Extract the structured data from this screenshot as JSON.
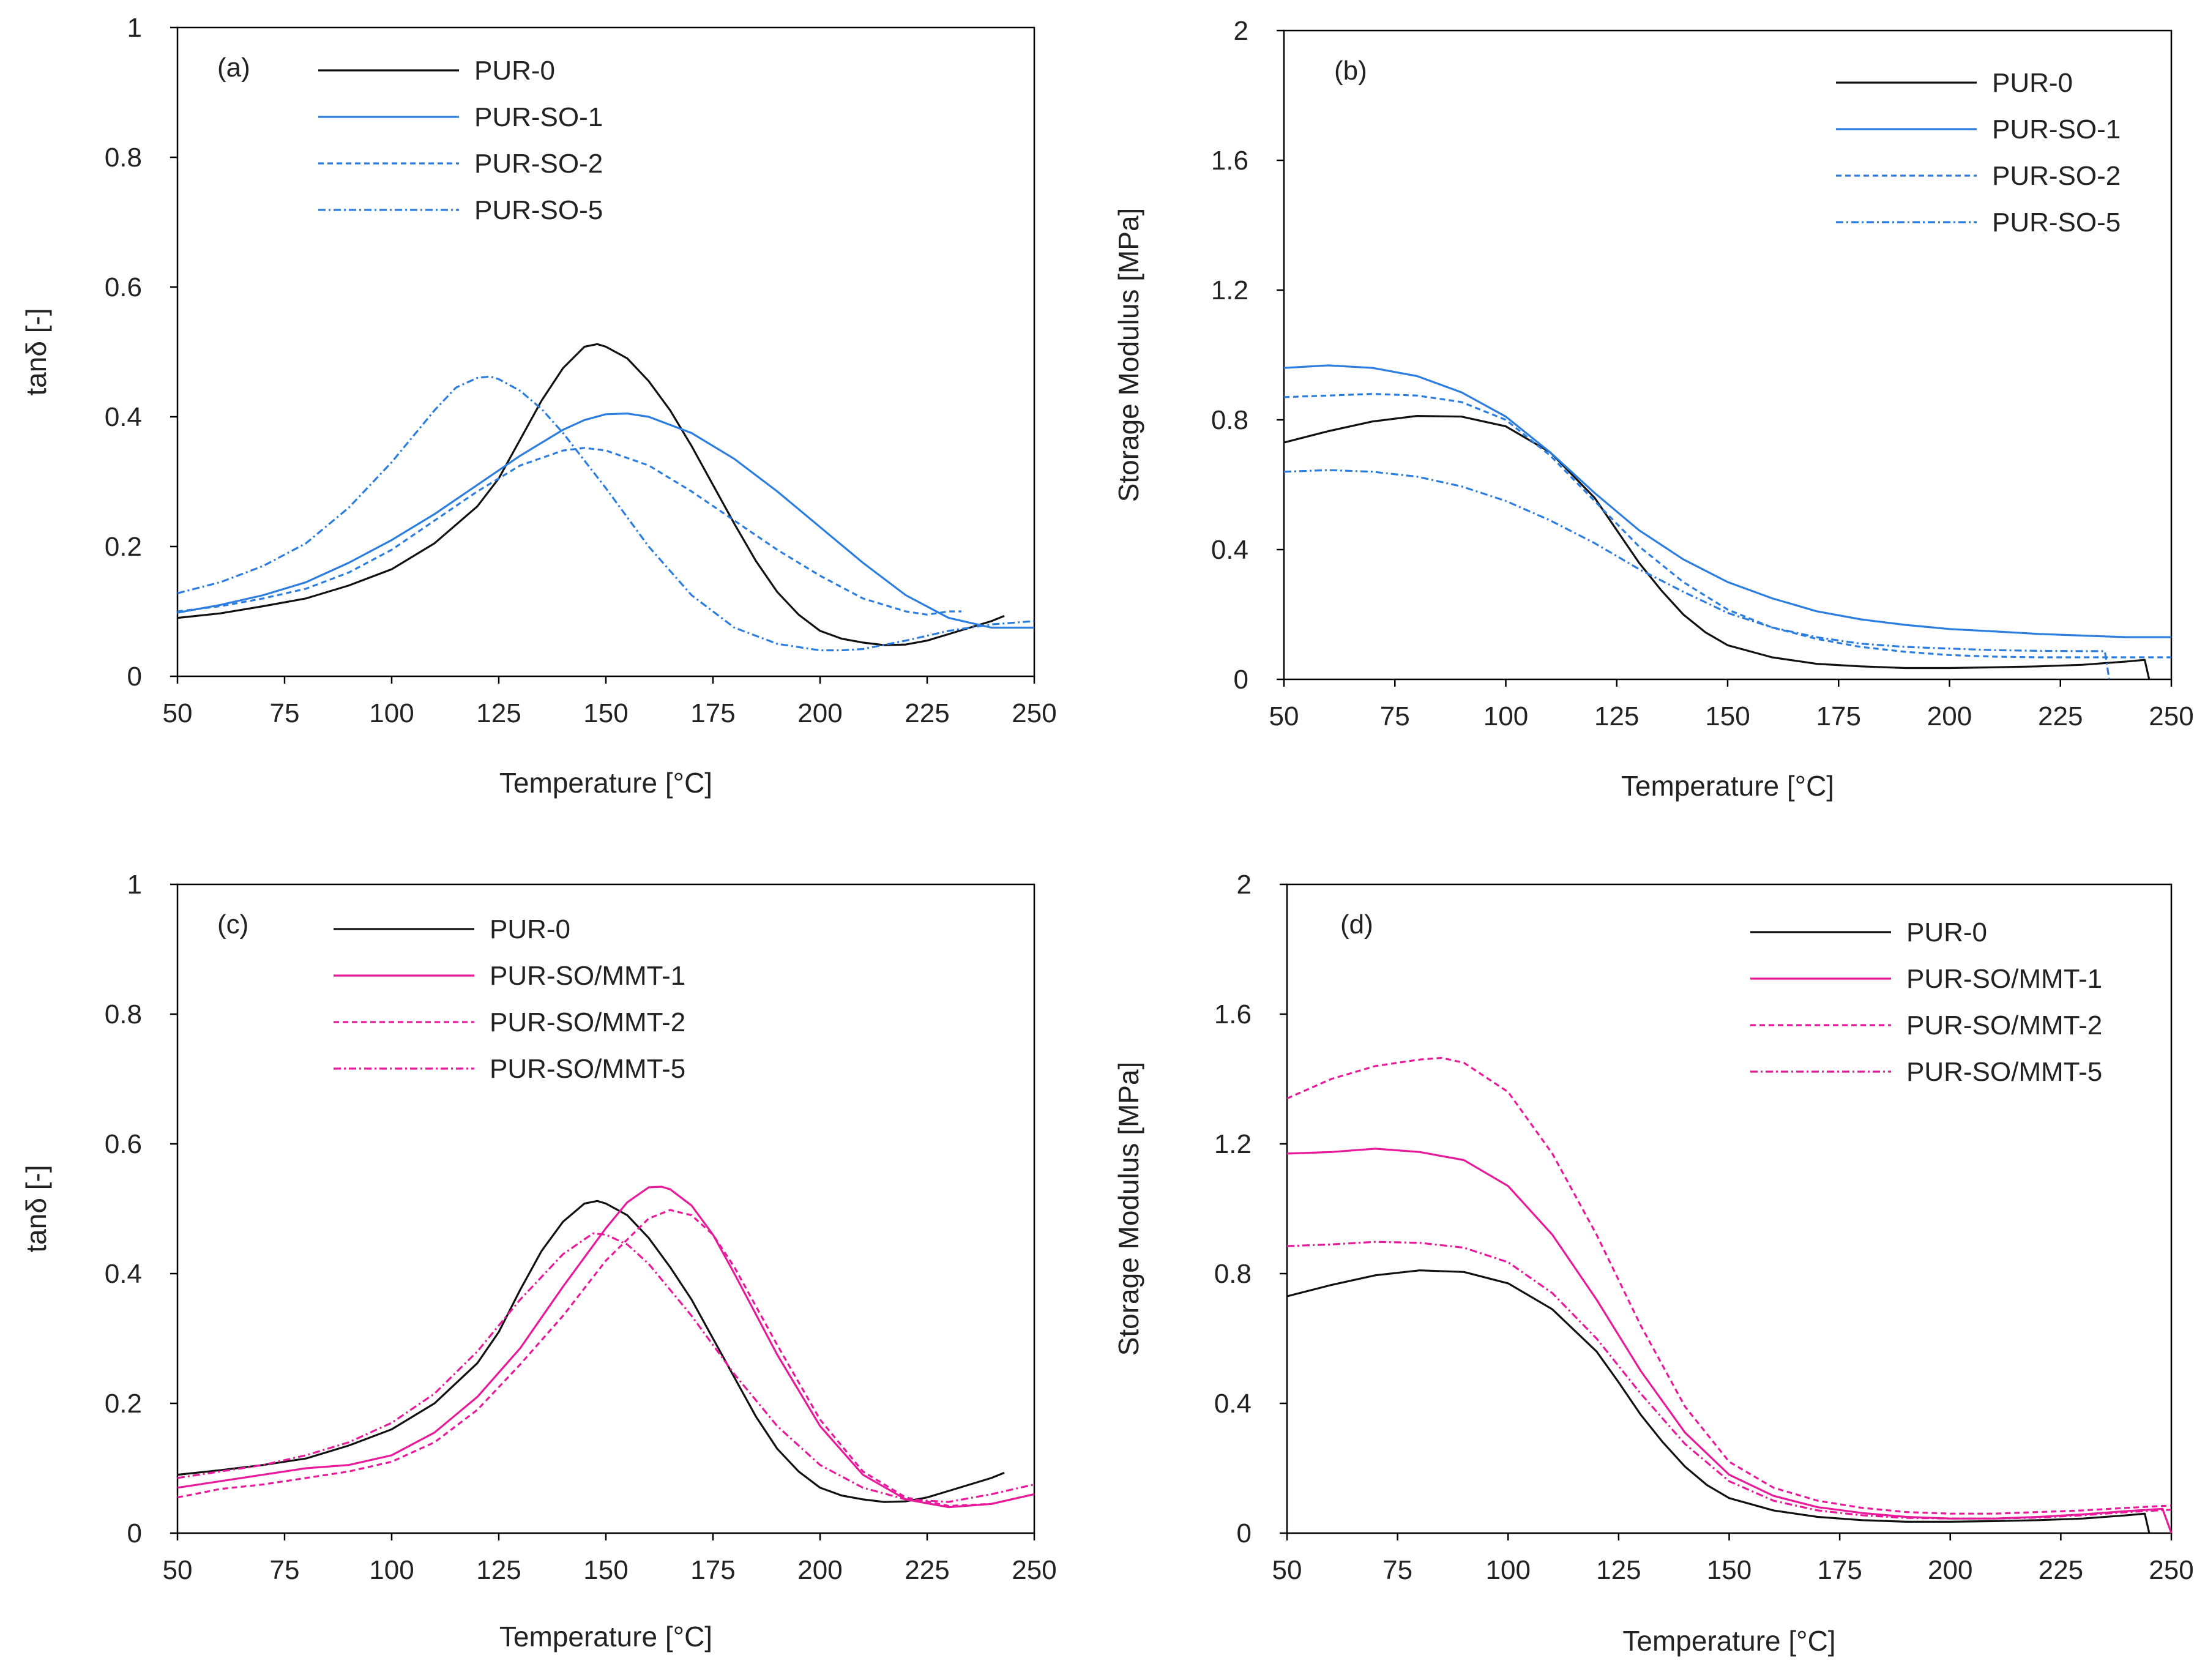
{
  "colors": {
    "black": "#111111",
    "blue": "#2b7de0",
    "pink": "#e8199a"
  },
  "chart_data": [
    {
      "id": "a",
      "type": "line",
      "panel_label": "(a)",
      "xlabel": "Temperature [°C]",
      "ylabel": "tanδ [-]",
      "xlim": [
        50,
        250
      ],
      "ylim": [
        0,
        1
      ],
      "xticks": [
        "50",
        "75",
        "100",
        "125",
        "150",
        "175",
        "200",
        "225",
        "250"
      ],
      "yticks": [
        "0",
        "0.2",
        "0.4",
        "0.6",
        "0.8",
        "1"
      ],
      "series": [
        {
          "name": "PUR-0",
          "color": "black",
          "dash": "solid",
          "x": [
            50,
            60,
            70,
            80,
            90,
            100,
            110,
            120,
            125,
            130,
            135,
            140,
            145,
            148,
            150,
            155,
            160,
            165,
            170,
            175,
            180,
            185,
            190,
            195,
            200,
            205,
            210,
            215,
            220,
            225,
            230,
            235,
            240,
            243
          ],
          "y": [
            0.09,
            0.097,
            0.108,
            0.12,
            0.14,
            0.165,
            0.205,
            0.262,
            0.305,
            0.365,
            0.425,
            0.475,
            0.508,
            0.512,
            0.508,
            0.49,
            0.455,
            0.41,
            0.355,
            0.295,
            0.235,
            0.178,
            0.13,
            0.095,
            0.07,
            0.058,
            0.052,
            0.048,
            0.049,
            0.055,
            0.065,
            0.075,
            0.085,
            0.093
          ]
        },
        {
          "name": "PUR-SO-1",
          "color": "blue",
          "dash": "solid",
          "x": [
            50,
            60,
            70,
            80,
            90,
            100,
            110,
            120,
            130,
            140,
            145,
            150,
            155,
            160,
            170,
            180,
            190,
            200,
            210,
            220,
            230,
            240,
            250
          ],
          "y": [
            0.098,
            0.11,
            0.125,
            0.145,
            0.175,
            0.21,
            0.25,
            0.295,
            0.34,
            0.38,
            0.395,
            0.404,
            0.405,
            0.4,
            0.375,
            0.335,
            0.285,
            0.23,
            0.175,
            0.125,
            0.09,
            0.075,
            0.075
          ]
        },
        {
          "name": "PUR-SO-2",
          "color": "blue",
          "dash": "dashed",
          "x": [
            50,
            60,
            70,
            80,
            90,
            100,
            110,
            120,
            130,
            140,
            145,
            150,
            160,
            170,
            180,
            190,
            200,
            210,
            220,
            225,
            230,
            233
          ],
          "y": [
            0.1,
            0.108,
            0.12,
            0.135,
            0.16,
            0.195,
            0.24,
            0.285,
            0.325,
            0.348,
            0.352,
            0.348,
            0.325,
            0.285,
            0.24,
            0.195,
            0.155,
            0.12,
            0.1,
            0.095,
            0.1,
            0.1
          ]
        },
        {
          "name": "PUR-SO-5",
          "color": "blue",
          "dash": "dashdot",
          "x": [
            50,
            60,
            70,
            80,
            90,
            100,
            110,
            115,
            120,
            123,
            125,
            130,
            135,
            140,
            150,
            160,
            170,
            180,
            190,
            200,
            205,
            210,
            220,
            230,
            240,
            250
          ],
          "y": [
            0.128,
            0.145,
            0.17,
            0.205,
            0.26,
            0.33,
            0.41,
            0.445,
            0.46,
            0.462,
            0.458,
            0.44,
            0.412,
            0.375,
            0.29,
            0.2,
            0.125,
            0.075,
            0.05,
            0.04,
            0.04,
            0.042,
            0.055,
            0.07,
            0.08,
            0.085
          ]
        }
      ]
    },
    {
      "id": "b",
      "type": "line",
      "panel_label": "(b)",
      "xlabel": "Temperature [°C]",
      "ylabel": "Storage Modulus [MPa]",
      "xlim": [
        50,
        250
      ],
      "ylim": [
        0,
        2
      ],
      "xticks": [
        "50",
        "75",
        "100",
        "125",
        "150",
        "175",
        "200",
        "225",
        "250"
      ],
      "yticks": [
        "0",
        "0.4",
        "0.8",
        "1.2",
        "1.6",
        "2"
      ],
      "series": [
        {
          "name": "PUR-0",
          "color": "black",
          "dash": "solid",
          "x": [
            50,
            60,
            70,
            80,
            90,
            100,
            110,
            120,
            125,
            130,
            135,
            140,
            145,
            150,
            160,
            170,
            180,
            190,
            200,
            210,
            220,
            230,
            240,
            244,
            245
          ],
          "y": [
            0.73,
            0.765,
            0.795,
            0.812,
            0.81,
            0.78,
            0.7,
            0.56,
            0.46,
            0.36,
            0.275,
            0.2,
            0.145,
            0.105,
            0.068,
            0.048,
            0.04,
            0.035,
            0.035,
            0.037,
            0.04,
            0.045,
            0.055,
            0.06,
            0.0
          ]
        },
        {
          "name": "PUR-SO-1",
          "color": "blue",
          "dash": "solid",
          "x": [
            50,
            60,
            70,
            80,
            90,
            100,
            110,
            120,
            130,
            140,
            150,
            160,
            170,
            180,
            190,
            200,
            210,
            220,
            230,
            240,
            250
          ],
          "y": [
            0.96,
            0.968,
            0.96,
            0.935,
            0.885,
            0.81,
            0.7,
            0.575,
            0.46,
            0.37,
            0.3,
            0.25,
            0.21,
            0.185,
            0.168,
            0.155,
            0.148,
            0.14,
            0.135,
            0.13,
            0.13
          ]
        },
        {
          "name": "PUR-SO-2",
          "color": "blue",
          "dash": "dashed",
          "x": [
            50,
            60,
            70,
            80,
            90,
            100,
            110,
            120,
            130,
            140,
            150,
            160,
            170,
            180,
            190,
            200,
            210,
            220,
            230,
            240,
            250
          ],
          "y": [
            0.87,
            0.875,
            0.88,
            0.875,
            0.855,
            0.8,
            0.69,
            0.55,
            0.41,
            0.3,
            0.215,
            0.16,
            0.125,
            0.1,
            0.085,
            0.075,
            0.07,
            0.068,
            0.068,
            0.068,
            0.068
          ]
        },
        {
          "name": "PUR-SO-5",
          "color": "blue",
          "dash": "dashdot",
          "x": [
            50,
            60,
            70,
            80,
            90,
            100,
            110,
            120,
            130,
            140,
            150,
            160,
            170,
            180,
            190,
            200,
            210,
            220,
            230,
            235,
            236
          ],
          "y": [
            0.64,
            0.645,
            0.64,
            0.625,
            0.595,
            0.55,
            0.49,
            0.42,
            0.34,
            0.27,
            0.205,
            0.16,
            0.13,
            0.11,
            0.1,
            0.095,
            0.09,
            0.088,
            0.087,
            0.087,
            0.0
          ]
        }
      ]
    },
    {
      "id": "c",
      "type": "line",
      "panel_label": "(c)",
      "xlabel": "Temperature [°C]",
      "ylabel": "tanδ [-]",
      "xlim": [
        50,
        250
      ],
      "ylim": [
        0,
        1
      ],
      "xticks": [
        "50",
        "75",
        "100",
        "125",
        "150",
        "175",
        "200",
        "225",
        "250"
      ],
      "yticks": [
        "0",
        "0.2",
        "0.4",
        "0.6",
        "0.8",
        "1"
      ],
      "series": [
        {
          "name": "PUR-0",
          "color": "black",
          "dash": "solid",
          "x": [
            50,
            60,
            70,
            80,
            90,
            100,
            110,
            120,
            125,
            130,
            135,
            140,
            145,
            148,
            150,
            155,
            160,
            165,
            170,
            175,
            180,
            185,
            190,
            195,
            200,
            205,
            210,
            215,
            220,
            225,
            230,
            235,
            240,
            243
          ],
          "y": [
            0.09,
            0.097,
            0.105,
            0.115,
            0.135,
            0.16,
            0.2,
            0.262,
            0.31,
            0.375,
            0.435,
            0.48,
            0.508,
            0.512,
            0.508,
            0.49,
            0.455,
            0.41,
            0.36,
            0.3,
            0.24,
            0.18,
            0.13,
            0.095,
            0.07,
            0.058,
            0.052,
            0.048,
            0.049,
            0.055,
            0.065,
            0.075,
            0.085,
            0.093
          ]
        },
        {
          "name": "PUR-SO/MMT-1",
          "color": "pink",
          "dash": "solid",
          "x": [
            50,
            60,
            70,
            80,
            90,
            100,
            110,
            120,
            130,
            140,
            150,
            155,
            160,
            163,
            165,
            170,
            175,
            180,
            190,
            200,
            210,
            220,
            230,
            240,
            250
          ],
          "y": [
            0.07,
            0.08,
            0.09,
            0.1,
            0.105,
            0.12,
            0.155,
            0.21,
            0.285,
            0.38,
            0.47,
            0.51,
            0.533,
            0.534,
            0.53,
            0.505,
            0.46,
            0.4,
            0.275,
            0.165,
            0.09,
            0.052,
            0.04,
            0.045,
            0.06
          ]
        },
        {
          "name": "PUR-SO/MMT-2",
          "color": "pink",
          "dash": "dashed",
          "x": [
            50,
            60,
            70,
            80,
            90,
            100,
            110,
            120,
            130,
            140,
            150,
            160,
            165,
            170,
            175,
            180,
            190,
            200,
            210,
            220,
            230,
            240,
            250
          ],
          "y": [
            0.055,
            0.068,
            0.075,
            0.085,
            0.095,
            0.11,
            0.14,
            0.19,
            0.26,
            0.335,
            0.42,
            0.485,
            0.498,
            0.49,
            0.46,
            0.41,
            0.29,
            0.175,
            0.095,
            0.055,
            0.042,
            0.045,
            0.06
          ]
        },
        {
          "name": "PUR-SO/MMT-5",
          "color": "pink",
          "dash": "dashdot",
          "x": [
            50,
            60,
            70,
            80,
            90,
            100,
            110,
            120,
            130,
            140,
            147,
            150,
            155,
            160,
            170,
            180,
            190,
            200,
            210,
            220,
            230,
            240,
            250
          ],
          "y": [
            0.085,
            0.095,
            0.105,
            0.12,
            0.14,
            0.17,
            0.215,
            0.28,
            0.36,
            0.43,
            0.462,
            0.46,
            0.445,
            0.415,
            0.335,
            0.245,
            0.165,
            0.105,
            0.07,
            0.052,
            0.048,
            0.06,
            0.075
          ]
        }
      ]
    },
    {
      "id": "d",
      "type": "line",
      "panel_label": "(d)",
      "xlabel": "Temperature [°C]",
      "ylabel": "Storage Modulus [MPa]",
      "xlim": [
        50,
        250
      ],
      "ylim": [
        0,
        2
      ],
      "xticks": [
        "50",
        "75",
        "100",
        "125",
        "150",
        "175",
        "200",
        "225",
        "250"
      ],
      "yticks": [
        "0",
        "0.4",
        "0.8",
        "1.2",
        "1.6",
        "2"
      ],
      "series": [
        {
          "name": "PUR-0",
          "color": "black",
          "dash": "solid",
          "x": [
            50,
            60,
            70,
            80,
            90,
            100,
            110,
            120,
            125,
            130,
            135,
            140,
            145,
            150,
            160,
            170,
            180,
            190,
            200,
            210,
            220,
            230,
            240,
            244,
            245
          ],
          "y": [
            0.73,
            0.765,
            0.795,
            0.81,
            0.805,
            0.77,
            0.69,
            0.56,
            0.465,
            0.365,
            0.28,
            0.205,
            0.148,
            0.108,
            0.07,
            0.05,
            0.04,
            0.035,
            0.035,
            0.037,
            0.04,
            0.045,
            0.055,
            0.06,
            0.0
          ]
        },
        {
          "name": "PUR-SO/MMT-1",
          "color": "pink",
          "dash": "solid",
          "x": [
            50,
            60,
            70,
            75,
            80,
            90,
            100,
            110,
            120,
            130,
            140,
            150,
            160,
            170,
            180,
            190,
            200,
            210,
            220,
            230,
            240,
            248,
            250
          ],
          "y": [
            1.17,
            1.175,
            1.185,
            1.18,
            1.175,
            1.15,
            1.07,
            0.92,
            0.72,
            0.5,
            0.31,
            0.18,
            0.115,
            0.08,
            0.062,
            0.05,
            0.045,
            0.045,
            0.05,
            0.058,
            0.068,
            0.075,
            0.0
          ]
        },
        {
          "name": "PUR-SO/MMT-2",
          "color": "pink",
          "dash": "dashed",
          "x": [
            50,
            60,
            70,
            80,
            85,
            90,
            100,
            110,
            120,
            130,
            140,
            150,
            160,
            170,
            180,
            190,
            200,
            210,
            220,
            230,
            240,
            250
          ],
          "y": [
            1.34,
            1.4,
            1.44,
            1.46,
            1.465,
            1.45,
            1.36,
            1.17,
            0.92,
            0.64,
            0.39,
            0.22,
            0.14,
            0.1,
            0.078,
            0.065,
            0.06,
            0.06,
            0.065,
            0.07,
            0.078,
            0.085
          ]
        },
        {
          "name": "PUR-SO/MMT-5",
          "color": "pink",
          "dash": "dashdot",
          "x": [
            50,
            60,
            70,
            80,
            90,
            100,
            110,
            120,
            130,
            140,
            150,
            160,
            170,
            180,
            190,
            200,
            210,
            220,
            230,
            240,
            250
          ],
          "y": [
            0.885,
            0.89,
            0.898,
            0.895,
            0.88,
            0.835,
            0.74,
            0.6,
            0.43,
            0.275,
            0.16,
            0.1,
            0.07,
            0.055,
            0.047,
            0.045,
            0.045,
            0.048,
            0.055,
            0.065,
            0.072
          ]
        }
      ]
    }
  ]
}
